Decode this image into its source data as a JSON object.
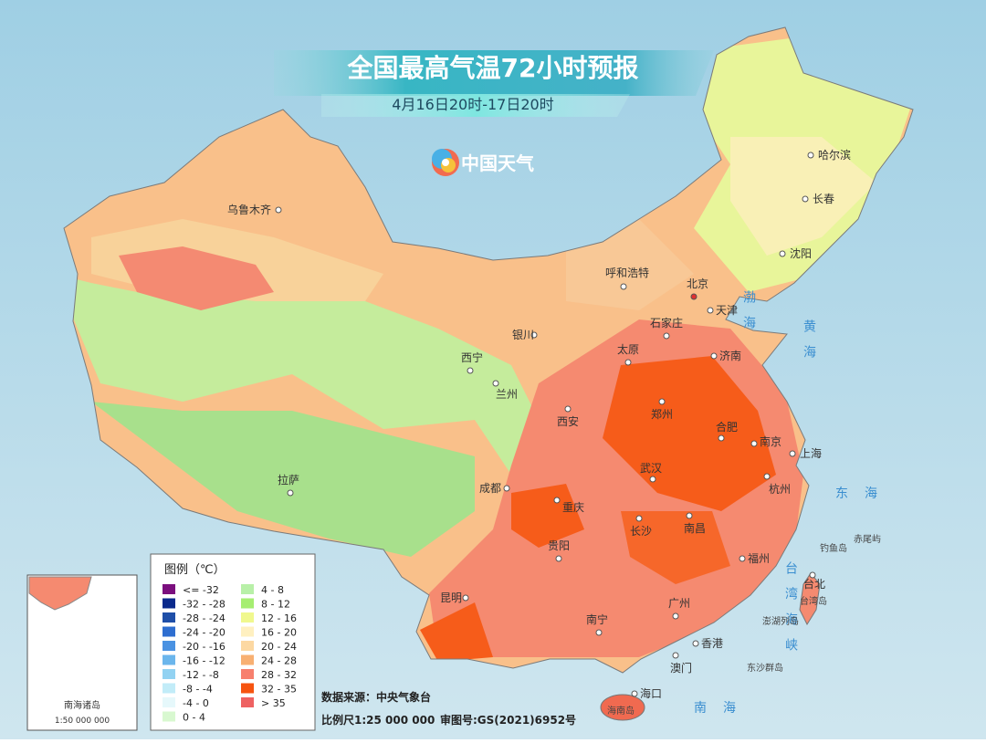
{
  "header": {
    "title": "全国最高气温72小时预报",
    "subtitle": "4月16日20时-17日20时",
    "logo": "中国天气"
  },
  "cities": [
    {
      "label": "乌鲁木齐"
    },
    {
      "label": "哈尔滨"
    },
    {
      "label": "长春"
    },
    {
      "label": "沈阳"
    },
    {
      "label": "呼和浩特"
    },
    {
      "label": "北京"
    },
    {
      "label": "天津"
    },
    {
      "label": "石家庄"
    },
    {
      "label": "太原"
    },
    {
      "label": "济南"
    },
    {
      "label": "银川"
    },
    {
      "label": "西宁"
    },
    {
      "label": "兰州"
    },
    {
      "label": "西安"
    },
    {
      "label": "郑州"
    },
    {
      "label": "合肥"
    },
    {
      "label": "南京"
    },
    {
      "label": "上海"
    },
    {
      "label": "杭州"
    },
    {
      "label": "武汉"
    },
    {
      "label": "成都"
    },
    {
      "label": "重庆"
    },
    {
      "label": "长沙"
    },
    {
      "label": "南昌"
    },
    {
      "label": "拉萨"
    },
    {
      "label": "贵阳"
    },
    {
      "label": "福州"
    },
    {
      "label": "昆明"
    },
    {
      "label": "广州"
    },
    {
      "label": "南宁"
    },
    {
      "label": "香港"
    },
    {
      "label": "澳门"
    },
    {
      "label": "海口"
    },
    {
      "label": "台北"
    }
  ],
  "places": [
    {
      "label": "渤海"
    },
    {
      "label": "黄海"
    },
    {
      "label": "东海"
    },
    {
      "label": "南海"
    },
    {
      "label": "台湾海峡"
    },
    {
      "label": "钓鱼岛"
    },
    {
      "label": "赤尾屿"
    },
    {
      "label": "台湾岛"
    },
    {
      "label": "澎湖列岛"
    },
    {
      "label": "东沙群岛"
    },
    {
      "label": "海南岛"
    }
  ],
  "legend": {
    "title": "图例（℃）",
    "items": [
      {
        "label": "<= -32",
        "color": "#7b0f7e"
      },
      {
        "label": "-32 - -28",
        "color": "#0b2a8c"
      },
      {
        "label": "-28 - -24",
        "color": "#1f4fa8"
      },
      {
        "label": "-24 - -20",
        "color": "#2e6ed0"
      },
      {
        "label": "-20 - -16",
        "color": "#4a92e2"
      },
      {
        "label": "-16 - -12",
        "color": "#6bb6ec"
      },
      {
        "label": "-12 - -8",
        "color": "#92d2f2"
      },
      {
        "label": "-8 - -4",
        "color": "#c2ecf8"
      },
      {
        "label": "-4 - 0",
        "color": "#e6f8fb"
      },
      {
        "label": "0 - 4",
        "color": "#d8f8d0"
      },
      {
        "label": "4 - 8",
        "color": "#b8f0a8"
      },
      {
        "label": "8 - 12",
        "color": "#a6ee72"
      },
      {
        "label": "12 - 16",
        "color": "#f0f88e"
      },
      {
        "label": "16 - 20",
        "color": "#fff0c0"
      },
      {
        "label": "20 - 24",
        "color": "#fcd8a2"
      },
      {
        "label": "24 - 28",
        "color": "#f8b072"
      },
      {
        "label": "28 - 32",
        "color": "#f7806e"
      },
      {
        "label": "32 - 35",
        "color": "#f65410"
      },
      {
        "label": "> 35",
        "color": "#ee6262"
      }
    ]
  },
  "footer": {
    "source": "数据来源：中央气象台",
    "scale": "比例尺1:25 000 000",
    "approval": "审图号:GS(2021)6952号"
  },
  "inset": {
    "title": "南海诸岛",
    "scale": "1:50 000 000"
  }
}
